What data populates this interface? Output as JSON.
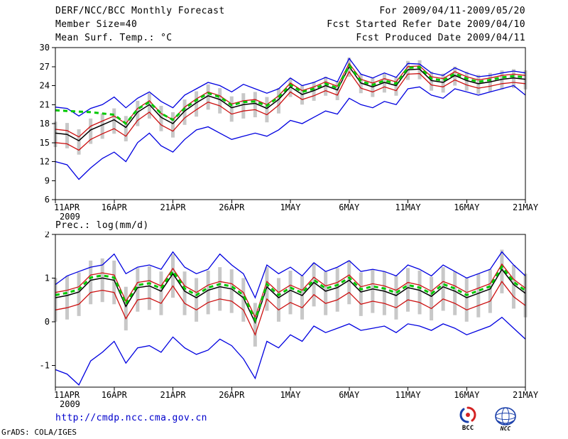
{
  "header": {
    "title": "DERF/NCC/BCC Monthly Forecast",
    "member_size": "Member Size=40",
    "temp_label": "Mean Surf. Temp.: °C",
    "for_range": "For 2009/04/11-2009/05/20",
    "fcst_started": "Fcst Started Refer Date 2009/04/10",
    "fcst_produced": "Fcst Produced Date 2009/04/11"
  },
  "precip_label": "Prec.: log(mm/d)",
  "footer": {
    "url": "http://cmdp.ncc.cma.gov.cn",
    "grads_credit": "GrADS: COLA/IGES",
    "logo_bcc": "BCC",
    "logo_ncc": "NCC"
  },
  "colors": {
    "line_blue": "#0000e0",
    "line_red": "#cc1111",
    "line_black": "#000000",
    "line_green": "#00c800",
    "bar_gray": "#c8c8c8",
    "url_blue": "#0000cc",
    "logo_red": "#d42222",
    "logo_blue": "#1a3faa"
  },
  "chart_data": [
    {
      "type": "line",
      "title": "Mean Surf. Temp.: °C",
      "x_year": "2009",
      "x_ticks": [
        "11APR",
        "16APR",
        "21APR",
        "26APR",
        "1MAY",
        "6MAY",
        "11MAY",
        "16MAY",
        "21MAY"
      ],
      "ylim": [
        6,
        30
      ],
      "y_ticks": [
        30,
        27,
        24,
        21,
        18,
        15,
        12,
        9,
        6
      ],
      "n_points": 41,
      "grid": false,
      "series": [
        {
          "name": "blue-upper",
          "color": "#0000e0",
          "width": 1.3,
          "dash": null,
          "values": [
            20.6,
            20.4,
            19.2,
            20.4,
            21.0,
            22.2,
            20.5,
            22.0,
            23.0,
            21.5,
            20.5,
            22.5,
            23.5,
            24.5,
            24.0,
            23.0,
            24.2,
            23.5,
            22.8,
            23.5,
            25.2,
            24.0,
            24.5,
            25.3,
            24.6,
            28.3,
            25.8,
            25.2,
            26.0,
            25.3,
            27.5,
            27.4,
            26.0,
            25.6,
            26.8,
            26.0,
            25.4,
            25.6,
            26.0,
            26.3,
            26.0
          ]
        },
        {
          "name": "blue-lower",
          "color": "#0000e0",
          "width": 1.3,
          "dash": null,
          "values": [
            12.0,
            11.5,
            9.2,
            11.0,
            12.5,
            13.5,
            12.0,
            15.0,
            16.5,
            14.5,
            13.5,
            15.5,
            17.0,
            17.5,
            16.5,
            15.5,
            16.0,
            16.5,
            16.0,
            17.0,
            18.5,
            18.0,
            19.0,
            20.0,
            19.5,
            22.0,
            21.0,
            20.5,
            21.5,
            21.0,
            23.5,
            23.8,
            22.5,
            22.0,
            23.5,
            23.0,
            22.5,
            23.0,
            23.5,
            24.0,
            22.5
          ]
        },
        {
          "name": "red-upper",
          "color": "#cc1111",
          "width": 1.3,
          "dash": null,
          "values": [
            17.1,
            16.9,
            15.9,
            17.6,
            18.4,
            19.2,
            18.0,
            20.4,
            21.6,
            19.6,
            18.6,
            20.6,
            21.9,
            23.0,
            22.4,
            21.1,
            21.6,
            21.8,
            21.0,
            22.4,
            24.4,
            23.2,
            23.8,
            24.6,
            23.9,
            27.5,
            25.0,
            24.4,
            25.1,
            24.6,
            27.0,
            27.1,
            25.4,
            25.1,
            26.2,
            25.4,
            24.9,
            25.2,
            25.6,
            25.8,
            25.6
          ]
        },
        {
          "name": "red-lower",
          "color": "#cc1111",
          "width": 1.3,
          "dash": null,
          "values": [
            15.0,
            14.8,
            13.8,
            15.5,
            16.4,
            17.2,
            16.0,
            18.5,
            19.8,
            17.8,
            16.8,
            18.9,
            20.2,
            21.4,
            20.8,
            19.5,
            20.0,
            20.2,
            19.4,
            20.9,
            23.0,
            21.8,
            22.4,
            23.2,
            22.5,
            26.2,
            23.6,
            23.0,
            23.8,
            23.2,
            25.8,
            25.9,
            24.1,
            23.8,
            24.9,
            24.1,
            23.6,
            23.9,
            24.3,
            24.5,
            24.3
          ]
        },
        {
          "name": "mean-black",
          "color": "#000000",
          "width": 1.5,
          "dash": null,
          "values": [
            16.5,
            16.3,
            15.3,
            17.0,
            17.8,
            18.6,
            17.4,
            19.8,
            21.0,
            19.0,
            18.0,
            20.0,
            21.3,
            22.4,
            21.8,
            20.5,
            21.0,
            21.2,
            20.4,
            21.8,
            23.8,
            22.6,
            23.2,
            24.0,
            23.3,
            27.0,
            24.4,
            23.8,
            24.5,
            24.0,
            26.5,
            26.6,
            24.8,
            24.5,
            25.6,
            24.8,
            24.3,
            24.6,
            25.0,
            25.2,
            25.0
          ]
        },
        {
          "name": "green-dashed",
          "color": "#00c800",
          "width": 3,
          "dash": "6,5",
          "values": [
            20.1,
            20.0,
            19.9,
            19.8,
            19.6,
            19.4,
            18.0,
            20.3,
            21.4,
            19.6,
            18.6,
            20.4,
            21.7,
            22.8,
            22.2,
            20.9,
            21.4,
            21.5,
            20.8,
            22.2,
            24.1,
            23.0,
            23.5,
            24.3,
            23.6,
            27.2,
            24.7,
            24.1,
            24.8,
            24.3,
            26.8,
            26.9,
            25.1,
            24.8,
            25.9,
            25.1,
            24.6,
            24.9,
            25.3,
            25.5,
            25.3
          ]
        }
      ],
      "bars": {
        "name": "spread-bar",
        "color": "#c8c8c8",
        "high": [
          18.3,
          18.1,
          17.1,
          18.8,
          19.6,
          20.4,
          19.2,
          21.6,
          22.8,
          20.8,
          19.8,
          21.8,
          23.1,
          24.2,
          23.6,
          22.3,
          22.8,
          23.0,
          22.2,
          23.6,
          25.2,
          24.0,
          24.6,
          25.4,
          24.7,
          28.4,
          25.8,
          25.2,
          25.9,
          25.4,
          27.9,
          28.0,
          26.2,
          25.9,
          27.0,
          26.2,
          25.7,
          26.0,
          26.4,
          26.6,
          26.4
        ],
        "low": [
          14.3,
          14.1,
          13.1,
          14.8,
          15.6,
          16.4,
          15.2,
          17.6,
          18.8,
          16.8,
          15.8,
          17.8,
          19.1,
          20.2,
          19.6,
          18.3,
          18.8,
          19.0,
          18.2,
          19.6,
          22.2,
          21.0,
          21.6,
          22.4,
          21.7,
          25.4,
          22.8,
          22.2,
          22.9,
          22.4,
          24.9,
          25.0,
          23.2,
          22.9,
          24.0,
          23.2,
          22.7,
          23.0,
          23.4,
          23.6,
          23.4
        ]
      }
    },
    {
      "type": "line",
      "title": "Prec.: log(mm/d)",
      "x_year": "2009",
      "x_ticks": [
        "11APR",
        "16APR",
        "21APR",
        "26APR",
        "1MAY",
        "6MAY",
        "11MAY",
        "16MAY",
        "21MAY"
      ],
      "ylim": [
        -1.5,
        2
      ],
      "y_ticks": [
        2,
        1,
        0,
        -1
      ],
      "n_points": 41,
      "grid": false,
      "series": [
        {
          "name": "blue-upper",
          "color": "#0000e0",
          "width": 1.3,
          "dash": null,
          "values": [
            0.85,
            1.05,
            1.15,
            1.25,
            1.3,
            1.55,
            1.1,
            1.25,
            1.3,
            1.2,
            1.6,
            1.25,
            1.1,
            1.2,
            1.55,
            1.3,
            1.1,
            0.55,
            1.3,
            1.1,
            1.25,
            1.05,
            1.35,
            1.15,
            1.25,
            1.4,
            1.15,
            1.2,
            1.15,
            1.05,
            1.3,
            1.2,
            1.05,
            1.3,
            1.15,
            1.0,
            1.1,
            1.2,
            1.6,
            1.3,
            1.05
          ]
        },
        {
          "name": "blue-lower",
          "color": "#0000e0",
          "width": 1.3,
          "dash": null,
          "values": [
            -1.1,
            -1.2,
            -1.45,
            -0.9,
            -0.7,
            -0.45,
            -0.95,
            -0.6,
            -0.55,
            -0.7,
            -0.35,
            -0.6,
            -0.75,
            -0.65,
            -0.4,
            -0.55,
            -0.85,
            -1.3,
            -0.45,
            -0.6,
            -0.3,
            -0.45,
            -0.1,
            -0.25,
            -0.15,
            -0.05,
            -0.2,
            -0.15,
            -0.1,
            -0.25,
            -0.05,
            -0.1,
            -0.2,
            -0.05,
            -0.15,
            -0.3,
            -0.2,
            -0.1,
            0.1,
            -0.15,
            -0.4
          ]
        },
        {
          "name": "red-upper",
          "color": "#cc1111",
          "width": 1.3,
          "dash": null,
          "values": [
            0.67,
            0.72,
            0.8,
            1.07,
            1.12,
            1.07,
            0.47,
            0.9,
            0.94,
            0.82,
            1.22,
            0.82,
            0.67,
            0.84,
            0.92,
            0.87,
            0.67,
            0.1,
            0.92,
            0.67,
            0.84,
            0.72,
            1.02,
            0.82,
            0.9,
            1.07,
            0.8,
            0.87,
            0.82,
            0.72,
            0.9,
            0.84,
            0.7,
            0.92,
            0.82,
            0.67,
            0.77,
            0.87,
            1.32,
            0.97,
            0.77
          ]
        },
        {
          "name": "red-lower",
          "color": "#cc1111",
          "width": 1.3,
          "dash": null,
          "values": [
            0.27,
            0.32,
            0.4,
            0.67,
            0.72,
            0.67,
            0.07,
            0.5,
            0.54,
            0.42,
            0.82,
            0.42,
            0.27,
            0.44,
            0.52,
            0.47,
            0.27,
            -0.3,
            0.52,
            0.27,
            0.44,
            0.32,
            0.62,
            0.42,
            0.5,
            0.67,
            0.4,
            0.47,
            0.42,
            0.32,
            0.5,
            0.44,
            0.3,
            0.52,
            0.42,
            0.27,
            0.37,
            0.47,
            0.92,
            0.57,
            0.37
          ]
        },
        {
          "name": "mean-black",
          "color": "#000000",
          "width": 1.5,
          "dash": null,
          "values": [
            0.55,
            0.6,
            0.68,
            0.95,
            1.0,
            0.95,
            0.35,
            0.78,
            0.82,
            0.7,
            1.1,
            0.7,
            0.55,
            0.72,
            0.8,
            0.75,
            0.55,
            -0.02,
            0.8,
            0.55,
            0.72,
            0.6,
            0.9,
            0.7,
            0.78,
            0.95,
            0.68,
            0.75,
            0.7,
            0.6,
            0.78,
            0.72,
            0.58,
            0.8,
            0.7,
            0.55,
            0.65,
            0.75,
            1.2,
            0.85,
            0.65
          ]
        },
        {
          "name": "green-dashed",
          "color": "#00c800",
          "width": 3,
          "dash": "6,5",
          "values": [
            0.61,
            0.66,
            0.74,
            1.01,
            1.06,
            1.01,
            0.41,
            0.84,
            0.88,
            0.76,
            1.16,
            0.76,
            0.61,
            0.78,
            0.86,
            0.81,
            0.61,
            0.04,
            0.86,
            0.61,
            0.78,
            0.66,
            0.96,
            0.76,
            0.84,
            1.01,
            0.74,
            0.81,
            0.76,
            0.66,
            0.84,
            0.78,
            0.64,
            0.86,
            0.76,
            0.61,
            0.71,
            0.81,
            1.26,
            0.91,
            0.71
          ]
        }
      ],
      "bars": {
        "name": "spread-bar",
        "color": "#c8c8c8",
        "high": [
          1.0,
          1.05,
          1.13,
          1.4,
          1.45,
          1.4,
          0.8,
          1.23,
          1.27,
          1.15,
          1.55,
          1.15,
          1.0,
          1.17,
          1.25,
          1.2,
          1.0,
          0.43,
          1.25,
          1.0,
          1.17,
          1.05,
          1.35,
          1.15,
          1.23,
          1.4,
          1.13,
          1.2,
          1.15,
          1.05,
          1.23,
          1.17,
          1.03,
          1.25,
          1.15,
          1.0,
          1.1,
          1.2,
          1.65,
          1.3,
          1.1
        ],
        "low": [
          0.0,
          0.05,
          0.13,
          0.4,
          0.45,
          0.4,
          -0.2,
          0.23,
          0.27,
          0.15,
          0.55,
          0.15,
          0.0,
          0.17,
          0.25,
          0.2,
          0.0,
          -0.57,
          0.25,
          0.0,
          0.17,
          0.05,
          0.35,
          0.15,
          0.23,
          0.4,
          0.13,
          0.2,
          0.15,
          0.05,
          0.23,
          0.17,
          0.03,
          0.25,
          0.15,
          0.0,
          0.1,
          0.2,
          0.65,
          0.3,
          0.1
        ]
      }
    }
  ]
}
